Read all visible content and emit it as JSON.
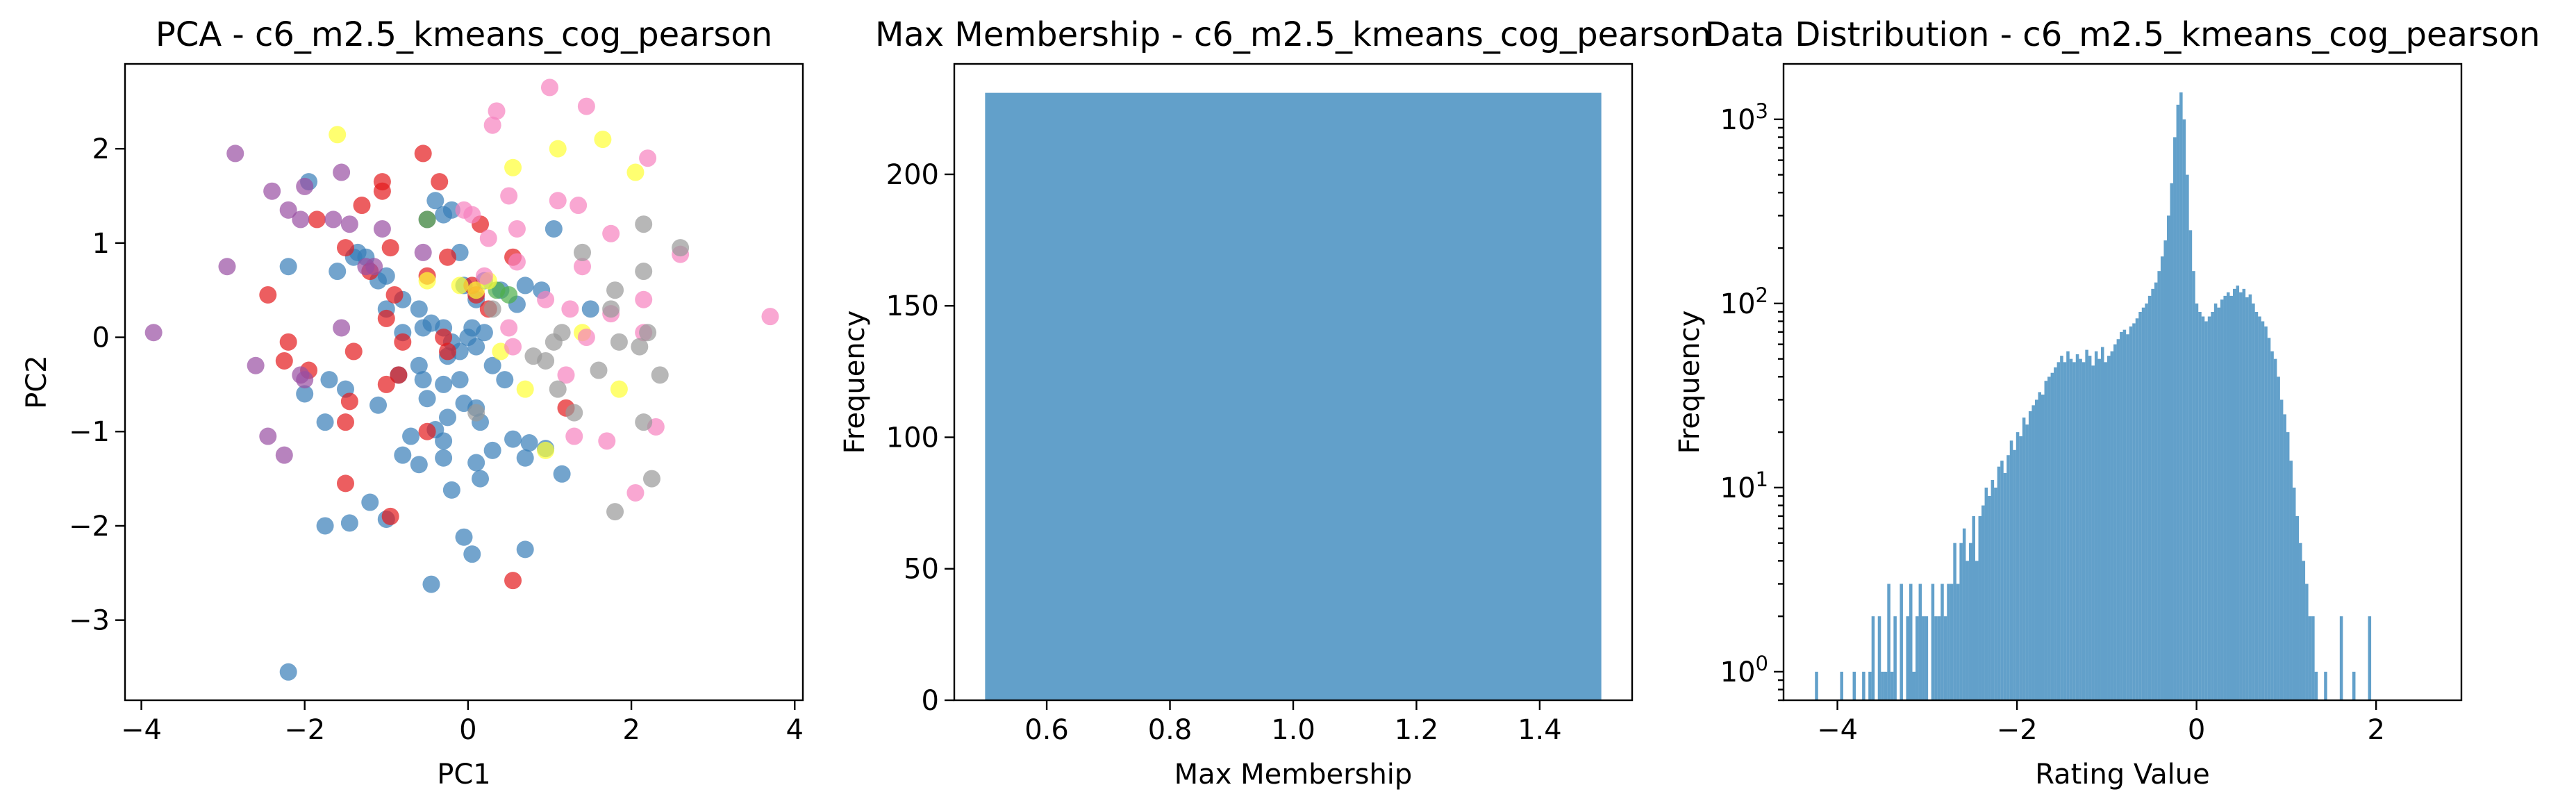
{
  "chart_data": [
    {
      "type": "scatter",
      "title": "PCA - c6_m2.5_kmeans_cog_pearson",
      "xlabel": "PC1",
      "ylabel": "PC2",
      "xlim": [
        -4.2,
        4.1
      ],
      "ylim": [
        -3.85,
        2.9
      ],
      "xticks": [
        -4,
        -2,
        0,
        2,
        4
      ],
      "yticks": [
        -3,
        -2,
        -1,
        0,
        1,
        2
      ],
      "grid": false,
      "series": [
        {
          "color": "#377eb8",
          "points": [
            [
              -2.2,
              -3.55
            ],
            [
              -0.45,
              -2.62
            ],
            [
              0.05,
              -2.3
            ],
            [
              -0.05,
              -2.12
            ],
            [
              0.7,
              -2.25
            ],
            [
              -1.75,
              -2.0
            ],
            [
              -1.45,
              -1.97
            ],
            [
              -1.0,
              -1.93
            ],
            [
              -1.2,
              -1.75
            ],
            [
              -0.2,
              -1.62
            ],
            [
              0.15,
              -1.5
            ],
            [
              1.15,
              -1.45
            ],
            [
              -0.6,
              -1.35
            ],
            [
              -0.3,
              -1.28
            ],
            [
              0.1,
              -1.33
            ],
            [
              0.7,
              -1.28
            ],
            [
              0.95,
              -1.18
            ],
            [
              -0.8,
              -1.25
            ],
            [
              0.3,
              -1.2
            ],
            [
              -0.3,
              -1.1
            ],
            [
              -0.7,
              -1.05
            ],
            [
              -0.4,
              -0.98
            ],
            [
              0.55,
              -1.08
            ],
            [
              0.75,
              -1.12
            ],
            [
              -1.75,
              -0.9
            ],
            [
              -0.25,
              -0.85
            ],
            [
              -0.05,
              -0.7
            ],
            [
              0.1,
              -0.75
            ],
            [
              0.15,
              -0.9
            ],
            [
              -1.1,
              -0.72
            ],
            [
              -0.5,
              -0.65
            ],
            [
              -0.55,
              -0.45
            ],
            [
              -0.3,
              -0.5
            ],
            [
              -2.0,
              -0.6
            ],
            [
              -1.7,
              -0.45
            ],
            [
              -1.5,
              -0.55
            ],
            [
              -0.85,
              -0.4
            ],
            [
              -0.6,
              -0.3
            ],
            [
              -0.1,
              -0.45
            ],
            [
              0.3,
              -0.3
            ],
            [
              0.45,
              -0.45
            ],
            [
              -0.25,
              -0.2
            ],
            [
              -0.1,
              -0.15
            ],
            [
              -0.2,
              -0.05
            ],
            [
              0.0,
              0.0
            ],
            [
              -0.3,
              0.1
            ],
            [
              0.05,
              0.1
            ],
            [
              0.2,
              0.05
            ],
            [
              0.1,
              -0.1
            ],
            [
              -0.8,
              0.05
            ],
            [
              -0.55,
              0.1
            ],
            [
              -0.45,
              0.15
            ],
            [
              -1.0,
              0.3
            ],
            [
              -0.8,
              0.4
            ],
            [
              -0.6,
              0.3
            ],
            [
              0.6,
              0.35
            ],
            [
              0.9,
              0.5
            ],
            [
              0.2,
              0.6
            ],
            [
              0.4,
              0.5
            ],
            [
              0.7,
              0.55
            ],
            [
              -2.2,
              0.75
            ],
            [
              -1.6,
              0.7
            ],
            [
              -1.25,
              0.85
            ],
            [
              -1.1,
              0.6
            ],
            [
              -1.0,
              0.65
            ],
            [
              -0.1,
              0.9
            ],
            [
              -1.4,
              0.85
            ],
            [
              1.05,
              1.15
            ],
            [
              -0.4,
              1.45
            ],
            [
              -0.3,
              1.3
            ],
            [
              -0.2,
              1.35
            ],
            [
              -1.95,
              1.65
            ],
            [
              -1.35,
              0.9
            ],
            [
              -0.05,
              0.55
            ],
            [
              0.1,
              0.4
            ],
            [
              1.5,
              0.3
            ]
          ]
        },
        {
          "color": "#e41a1c",
          "points": [
            [
              0.55,
              -2.58
            ],
            [
              -0.95,
              -1.9
            ],
            [
              -1.5,
              -1.55
            ],
            [
              -1.5,
              -0.9
            ],
            [
              -0.5,
              -1.0
            ],
            [
              -1.45,
              -0.68
            ],
            [
              -1.0,
              -0.5
            ],
            [
              -0.85,
              -0.4
            ],
            [
              -2.25,
              -0.25
            ],
            [
              -1.95,
              -0.35
            ],
            [
              -2.2,
              -0.05
            ],
            [
              -0.25,
              -0.15
            ],
            [
              -1.4,
              -0.15
            ],
            [
              -0.8,
              -0.05
            ],
            [
              -2.45,
              0.45
            ],
            [
              -0.9,
              0.45
            ],
            [
              -1.0,
              0.2
            ],
            [
              0.25,
              0.3
            ],
            [
              0.1,
              0.45
            ],
            [
              0.05,
              0.55
            ],
            [
              -0.3,
              0.0
            ],
            [
              -1.85,
              1.25
            ],
            [
              -1.5,
              0.95
            ],
            [
              -0.95,
              0.95
            ],
            [
              -1.2,
              0.7
            ],
            [
              -0.5,
              0.65
            ],
            [
              0.55,
              0.85
            ],
            [
              -0.25,
              0.85
            ],
            [
              -1.05,
              1.55
            ],
            [
              -1.05,
              1.65
            ],
            [
              -1.3,
              1.4
            ],
            [
              -0.55,
              1.95
            ],
            [
              -0.35,
              1.65
            ],
            [
              0.15,
              1.2
            ],
            [
              1.2,
              -0.75
            ]
          ]
        },
        {
          "color": "#984ea3",
          "points": [
            [
              -3.85,
              0.05
            ],
            [
              -2.95,
              0.75
            ],
            [
              -2.6,
              -0.3
            ],
            [
              -2.45,
              -1.05
            ],
            [
              -2.25,
              -1.25
            ],
            [
              -2.4,
              1.55
            ],
            [
              -2.0,
              1.6
            ],
            [
              -2.05,
              1.25
            ],
            [
              -2.2,
              1.35
            ],
            [
              -1.55,
              1.75
            ],
            [
              -1.45,
              1.2
            ],
            [
              -1.05,
              1.15
            ],
            [
              -1.15,
              0.75
            ],
            [
              -0.55,
              0.9
            ],
            [
              -0.5,
              1.25
            ],
            [
              -1.65,
              1.25
            ],
            [
              -2.0,
              -0.45
            ],
            [
              -2.05,
              -0.4
            ],
            [
              -1.55,
              0.1
            ],
            [
              -2.85,
              1.95
            ],
            [
              -1.25,
              0.75
            ]
          ]
        },
        {
          "color": "#4daf4a",
          "points": [
            [
              -0.5,
              1.25
            ],
            [
              0.35,
              0.5
            ],
            [
              0.5,
              0.45
            ]
          ]
        },
        {
          "color": "#ffff33",
          "points": [
            [
              -1.6,
              2.15
            ],
            [
              0.55,
              1.8
            ],
            [
              1.1,
              2.0
            ],
            [
              1.65,
              2.1
            ],
            [
              2.05,
              1.75
            ],
            [
              0.25,
              0.6
            ],
            [
              -0.1,
              0.55
            ],
            [
              0.1,
              0.5
            ],
            [
              0.4,
              -0.15
            ],
            [
              0.7,
              -0.55
            ],
            [
              0.95,
              -1.2
            ],
            [
              1.4,
              0.05
            ],
            [
              1.85,
              -0.55
            ],
            [
              -0.5,
              0.6
            ]
          ]
        },
        {
          "color": "#f781bf",
          "points": [
            [
              3.7,
              0.22
            ],
            [
              2.6,
              0.88
            ],
            [
              2.2,
              1.9
            ],
            [
              1.45,
              2.45
            ],
            [
              1.0,
              2.65
            ],
            [
              0.35,
              2.4
            ],
            [
              0.3,
              2.25
            ],
            [
              0.5,
              1.5
            ],
            [
              0.25,
              1.05
            ],
            [
              0.05,
              1.3
            ],
            [
              -0.05,
              1.35
            ],
            [
              0.2,
              0.65
            ],
            [
              1.1,
              1.45
            ],
            [
              1.35,
              1.4
            ],
            [
              1.75,
              1.1
            ],
            [
              1.4,
              0.75
            ],
            [
              0.5,
              0.1
            ],
            [
              1.25,
              0.3
            ],
            [
              2.15,
              0.05
            ],
            [
              2.15,
              0.4
            ],
            [
              2.3,
              -0.95
            ],
            [
              1.7,
              -1.1
            ],
            [
              2.05,
              -1.65
            ],
            [
              1.3,
              -1.05
            ],
            [
              1.45,
              0.0
            ],
            [
              0.55,
              -0.1
            ],
            [
              1.75,
              0.25
            ],
            [
              0.6,
              1.15
            ],
            [
              0.6,
              0.8
            ],
            [
              0.95,
              0.4
            ],
            [
              1.2,
              -0.4
            ]
          ]
        },
        {
          "color": "#999999",
          "points": [
            [
              2.6,
              0.95
            ],
            [
              2.15,
              1.2
            ],
            [
              2.15,
              0.7
            ],
            [
              1.4,
              0.9
            ],
            [
              1.8,
              0.5
            ],
            [
              1.75,
              0.3
            ],
            [
              2.2,
              0.05
            ],
            [
              1.85,
              -0.05
            ],
            [
              2.35,
              -0.4
            ],
            [
              2.15,
              -0.9
            ],
            [
              2.25,
              -1.5
            ],
            [
              1.8,
              -1.85
            ],
            [
              1.1,
              -0.55
            ],
            [
              0.8,
              -0.2
            ],
            [
              1.6,
              -0.35
            ],
            [
              1.3,
              -0.8
            ],
            [
              0.1,
              -0.8
            ],
            [
              0.95,
              -0.25
            ],
            [
              1.05,
              -0.05
            ],
            [
              0.3,
              0.3
            ],
            [
              1.15,
              0.05
            ],
            [
              2.1,
              -0.1
            ]
          ]
        }
      ]
    },
    {
      "type": "bar",
      "title": "Max Membership - c6_m2.5_kmeans_cog_pearson",
      "xlabel": "Max Membership",
      "ylabel": "Frequency",
      "xlim": [
        0.45,
        1.55
      ],
      "ylim": [
        0,
        242
      ],
      "xticks": [
        0.6,
        0.8,
        1.0,
        1.2,
        1.4
      ],
      "yticks": [
        0,
        50,
        100,
        150,
        200
      ],
      "bins": [
        {
          "x0": 0.5,
          "x1": 1.5,
          "value": 231
        }
      ],
      "color": "#1f77b4",
      "grid": false
    },
    {
      "type": "bar",
      "title": "Data Distribution - c6_m2.5_kmeans_cog_pearson",
      "xlabel": "Rating Value",
      "ylabel": "Frequency",
      "yscale": "log",
      "xlim": [
        -4.6,
        2.95
      ],
      "ylim": [
        0.7,
        2000
      ],
      "xticks": [
        -4,
        -2,
        0,
        2
      ],
      "yticks": [
        1,
        10,
        100,
        1000
      ],
      "ytick_labels": [
        {
          "base": "10",
          "exp": "0"
        },
        {
          "base": "10",
          "exp": "1"
        },
        {
          "base": "10",
          "exp": "2"
        },
        {
          "base": "10",
          "exp": "3"
        }
      ],
      "bin_start": -4.25,
      "bin_width": 0.035,
      "counts": [
        1,
        0,
        0,
        0,
        0,
        0,
        0,
        0,
        1,
        0,
        0,
        0,
        1,
        0,
        0,
        1,
        0,
        1,
        2,
        0,
        2,
        1,
        1,
        3,
        1,
        2,
        0,
        3,
        0,
        2,
        3,
        1,
        2,
        3,
        2,
        2,
        0,
        3,
        2,
        2,
        3,
        2,
        3,
        3,
        5,
        3,
        5,
        6,
        4,
        5,
        7,
        4,
        7,
        8,
        10,
        9,
        11,
        10,
        13,
        14,
        12,
        15,
        18,
        16,
        20,
        19,
        24,
        22,
        26,
        28,
        30,
        33,
        32,
        38,
        40,
        42,
        45,
        48,
        52,
        48,
        55,
        50,
        48,
        53,
        50,
        48,
        56,
        52,
        46,
        55,
        50,
        58,
        48,
        52,
        55,
        60,
        64,
        70,
        72,
        68,
        75,
        78,
        83,
        90,
        95,
        100,
        110,
        120,
        130,
        150,
        180,
        220,
        300,
        450,
        800,
        1200,
        1400,
        1000,
        500,
        250,
        150,
        100,
        90,
        85,
        80,
        85,
        90,
        100,
        95,
        105,
        110,
        115,
        110,
        120,
        125,
        115,
        120,
        108,
        112,
        100,
        90,
        85,
        80,
        75,
        65,
        55,
        50,
        40,
        30,
        25,
        20,
        14,
        10,
        7,
        5,
        4,
        3,
        2,
        2,
        1,
        0,
        0,
        1,
        0,
        0,
        0,
        0,
        2,
        0,
        0,
        0,
        1,
        0,
        0,
        0,
        0,
        2
      ],
      "color": "#1f77b4",
      "grid": false
    }
  ]
}
